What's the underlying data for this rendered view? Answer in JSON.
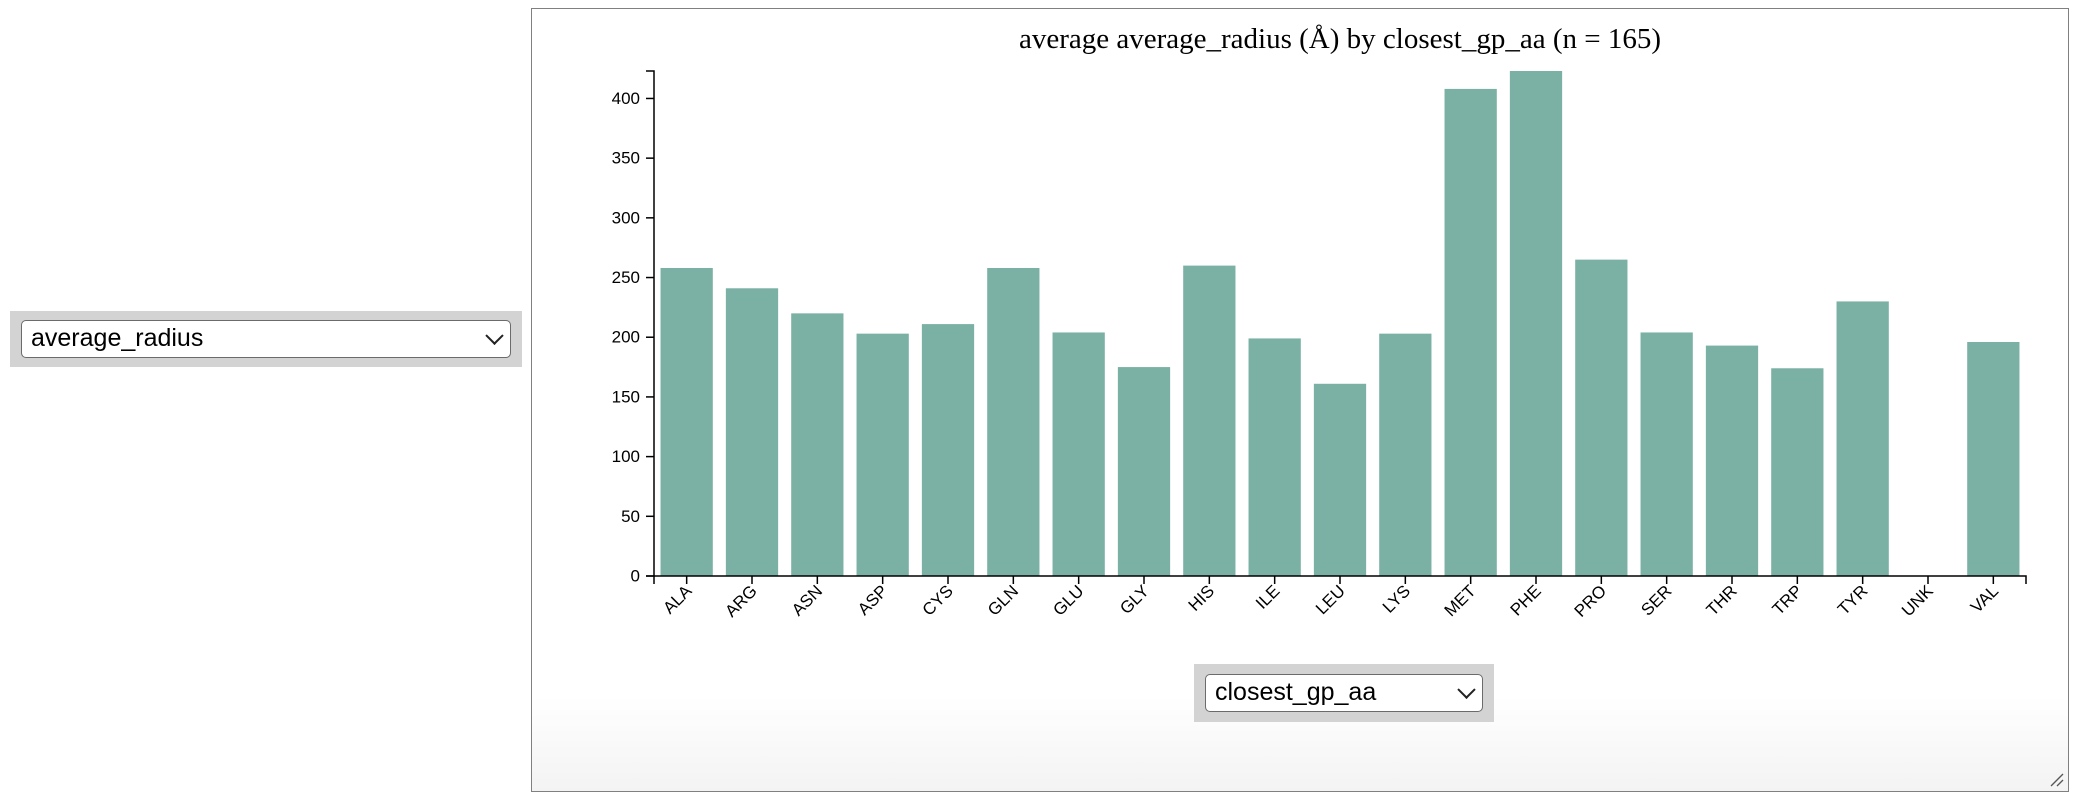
{
  "left_dropdown": {
    "selected": "average_radius"
  },
  "bottom_dropdown": {
    "selected": "closest_gp_aa"
  },
  "icons": {
    "dropdown": "chevron-down-icon",
    "resize": "resize-grip-icon"
  },
  "colors": {
    "bar": "#7bb1a4",
    "axis": "#000000"
  },
  "chart_data": {
    "type": "bar",
    "title": "average average_radius (Å) by closest_gp_aa (n = 165)",
    "xlabel": "",
    "ylabel": "",
    "categories": [
      "ALA",
      "ARG",
      "ASN",
      "ASP",
      "CYS",
      "GLN",
      "GLU",
      "GLY",
      "HIS",
      "ILE",
      "LEU",
      "LYS",
      "MET",
      "PHE",
      "PRO",
      "SER",
      "THR",
      "TRP",
      "TYR",
      "UNK",
      "VAL"
    ],
    "values": [
      258,
      241,
      220,
      203,
      211,
      258,
      204,
      175,
      260,
      199,
      161,
      203,
      408,
      423,
      265,
      204,
      193,
      174,
      230,
      0,
      196
    ],
    "ylim": [
      0,
      423
    ],
    "yticks": [
      0,
      50,
      100,
      150,
      200,
      250,
      300,
      350,
      400
    ],
    "grid": false,
    "legend": "none"
  }
}
